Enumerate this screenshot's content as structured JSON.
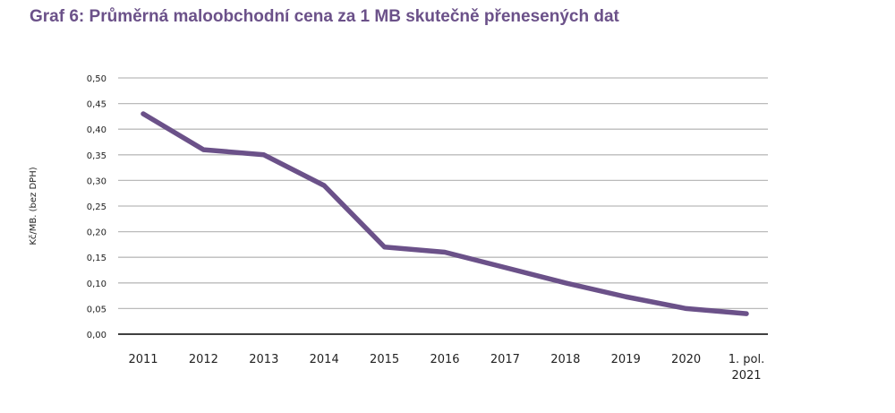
{
  "chart_data": {
    "type": "line",
    "title": "Graf 6: Průměrná maloobchodní cena za 1 MB skutečně přenesených dat",
    "xlabel": "",
    "ylabel": "Kč/MB. (bez DPH)",
    "categories": [
      "2011",
      "2012",
      "2013",
      "2014",
      "2015",
      "2016",
      "2017",
      "2018",
      "2019",
      "2020",
      "1. pol. 2021"
    ],
    "values": [
      0.43,
      0.36,
      0.35,
      0.29,
      0.17,
      0.16,
      0.13,
      0.1,
      0.073,
      0.05,
      0.04
    ],
    "ylim": [
      0,
      0.5
    ],
    "yticks": [
      "0,00",
      "0,05",
      "0,10",
      "0,15",
      "0,20",
      "0,25",
      "0,30",
      "0,35",
      "0,40",
      "0,45",
      "0,50"
    ],
    "grid": true,
    "line_color": "#6b5189"
  }
}
